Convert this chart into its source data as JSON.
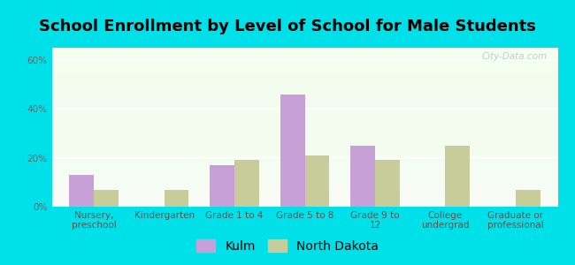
{
  "title": "School Enrollment by Level of School for Male Students",
  "categories": [
    "Nursery,\npreschool",
    "Kindergarten",
    "Grade 1 to 4",
    "Grade 5 to 8",
    "Grade 9 to\n12",
    "College\nundergrad",
    "Graduate or\nprofessional"
  ],
  "kulm_values": [
    13,
    0,
    17,
    46,
    25,
    0,
    0
  ],
  "nd_values": [
    7,
    7,
    19,
    21,
    19,
    25,
    7
  ],
  "kulm_color": "#c8a0d8",
  "nd_color": "#c8cc9a",
  "bg_outer": "#00e0e8",
  "title_fontsize": 13,
  "tick_fontsize": 7.5,
  "legend_fontsize": 10,
  "ylim": [
    0,
    65
  ],
  "yticks": [
    0,
    20,
    40,
    60
  ],
  "ytick_labels": [
    "0%",
    "20%",
    "40%",
    "60%"
  ],
  "bar_width": 0.35,
  "watermark": "City-Data.com"
}
